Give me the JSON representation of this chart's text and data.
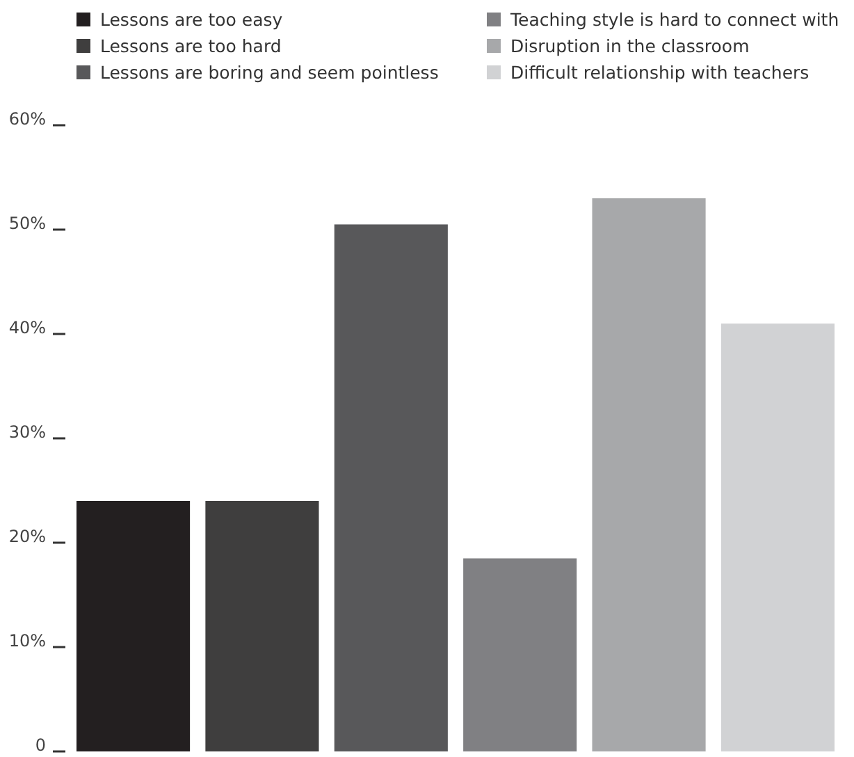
{
  "chart_data": {
    "type": "bar",
    "categories": [
      null
    ],
    "series": [
      {
        "name": "Lessons are too easy",
        "color": "#231f20",
        "values": [
          24
        ]
      },
      {
        "name": "Lessons are too hard",
        "color": "#3f3e3e",
        "values": [
          24
        ]
      },
      {
        "name": "Lessons are boring and seem pointless",
        "color": "#58585a",
        "values": [
          50.5
        ]
      },
      {
        "name": "Teaching style is hard to connect with",
        "color": "#808083",
        "values": [
          18.5
        ]
      },
      {
        "name": "Disruption in the classroom",
        "color": "#a7a8aa",
        "values": [
          53
        ]
      },
      {
        "name": "Difficult relationship with teachers",
        "color": "#d1d2d4",
        "values": [
          41
        ]
      }
    ],
    "ylim": [
      0,
      60
    ],
    "yticks": [
      {
        "value": 0,
        "label": "0"
      },
      {
        "value": 10,
        "label": "10%"
      },
      {
        "value": 20,
        "label": "20%"
      },
      {
        "value": 30,
        "label": "30%"
      },
      {
        "value": 40,
        "label": "40%"
      },
      {
        "value": 50,
        "label": "50%"
      },
      {
        "value": 60,
        "label": "60%"
      }
    ],
    "legend": "top",
    "grid": false
  }
}
